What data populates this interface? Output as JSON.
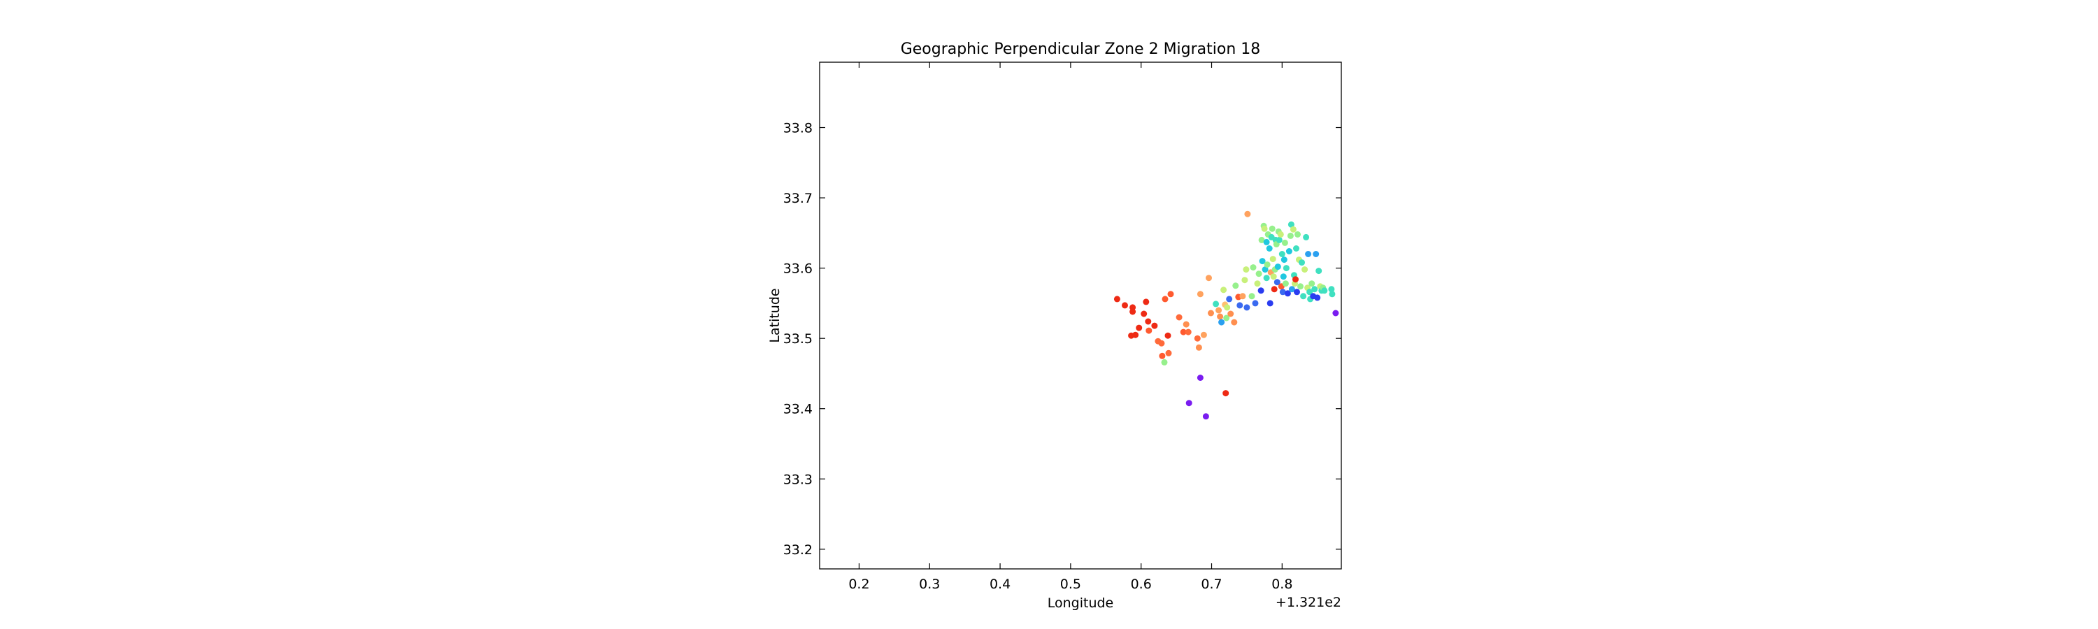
{
  "chart_data": {
    "type": "scatter",
    "title": "Geographic Perpendicular Zone 2 Migration 18",
    "xlabel": "Longitude",
    "ylabel": "Latitude",
    "x_offset_label": "+1.321e2",
    "xlim": [
      0.144,
      0.884
    ],
    "ylim": [
      33.172,
      33.893
    ],
    "xticks": [
      0.2,
      0.3,
      0.4,
      0.5,
      0.6,
      0.7,
      0.8
    ],
    "xtick_labels": [
      "0.2",
      "0.3",
      "0.4",
      "0.5",
      "0.6",
      "0.7",
      "0.8"
    ],
    "yticks": [
      33.2,
      33.3,
      33.4,
      33.5,
      33.6,
      33.7,
      33.8
    ],
    "ytick_labels": [
      "33.2",
      "33.3",
      "33.4",
      "33.5",
      "33.6",
      "33.7",
      "33.8"
    ],
    "grid": false,
    "legend": "none",
    "colormap": "rainbow",
    "points": [
      {
        "x": 0.566,
        "y": 33.556,
        "color": "#ee2a14"
      },
      {
        "x": 0.577,
        "y": 33.547,
        "color": "#ee2a14"
      },
      {
        "x": 0.588,
        "y": 33.544,
        "color": "#ee2a14"
      },
      {
        "x": 0.588,
        "y": 33.538,
        "color": "#ee2a14"
      },
      {
        "x": 0.592,
        "y": 33.505,
        "color": "#ee2a14"
      },
      {
        "x": 0.586,
        "y": 33.504,
        "color": "#ee2a14"
      },
      {
        "x": 0.597,
        "y": 33.515,
        "color": "#ee2a14"
      },
      {
        "x": 0.604,
        "y": 33.535,
        "color": "#ee2a14"
      },
      {
        "x": 0.607,
        "y": 33.552,
        "color": "#ee2a14"
      },
      {
        "x": 0.61,
        "y": 33.524,
        "color": "#ee2a14"
      },
      {
        "x": 0.611,
        "y": 33.511,
        "color": "#ff5a2f"
      },
      {
        "x": 0.619,
        "y": 33.518,
        "color": "#ee2a14"
      },
      {
        "x": 0.624,
        "y": 33.496,
        "color": "#ff6a3a"
      },
      {
        "x": 0.629,
        "y": 33.493,
        "color": "#ff6a3a"
      },
      {
        "x": 0.63,
        "y": 33.475,
        "color": "#ff5a2f"
      },
      {
        "x": 0.634,
        "y": 33.556,
        "color": "#ff5a2f"
      },
      {
        "x": 0.638,
        "y": 33.504,
        "color": "#ee2a14"
      },
      {
        "x": 0.639,
        "y": 33.479,
        "color": "#ff6a3a"
      },
      {
        "x": 0.642,
        "y": 33.563,
        "color": "#ff5a2f"
      },
      {
        "x": 0.633,
        "y": 33.466,
        "color": "#96f08c"
      },
      {
        "x": 0.654,
        "y": 33.53,
        "color": "#ff6a3a"
      },
      {
        "x": 0.664,
        "y": 33.52,
        "color": "#ff8f4f"
      },
      {
        "x": 0.66,
        "y": 33.509,
        "color": "#ff5a2f"
      },
      {
        "x": 0.667,
        "y": 33.509,
        "color": "#ff6a3a"
      },
      {
        "x": 0.68,
        "y": 33.5,
        "color": "#ff6a3a"
      },
      {
        "x": 0.682,
        "y": 33.487,
        "color": "#ff8f4f"
      },
      {
        "x": 0.689,
        "y": 33.505,
        "color": "#ffa25e"
      },
      {
        "x": 0.684,
        "y": 33.563,
        "color": "#ffa25e"
      },
      {
        "x": 0.696,
        "y": 33.586,
        "color": "#ffa25e"
      },
      {
        "x": 0.699,
        "y": 33.536,
        "color": "#ff8f4f"
      },
      {
        "x": 0.706,
        "y": 33.549,
        "color": "#3fe0c0"
      },
      {
        "x": 0.71,
        "y": 33.54,
        "color": "#ffa25e"
      },
      {
        "x": 0.712,
        "y": 33.531,
        "color": "#ff8f4f"
      },
      {
        "x": 0.714,
        "y": 33.523,
        "color": "#2aa0f0"
      },
      {
        "x": 0.717,
        "y": 33.569,
        "color": "#c8f07a"
      },
      {
        "x": 0.719,
        "y": 33.548,
        "color": "#ffc070"
      },
      {
        "x": 0.722,
        "y": 33.544,
        "color": "#c8f07a"
      },
      {
        "x": 0.721,
        "y": 33.529,
        "color": "#96f08c"
      },
      {
        "x": 0.725,
        "y": 33.556,
        "color": "#3a6af0"
      },
      {
        "x": 0.727,
        "y": 33.535,
        "color": "#ff8f4f"
      },
      {
        "x": 0.732,
        "y": 33.523,
        "color": "#ff8f4f"
      },
      {
        "x": 0.734,
        "y": 33.575,
        "color": "#96f08c"
      },
      {
        "x": 0.738,
        "y": 33.559,
        "color": "#ff5a2f"
      },
      {
        "x": 0.74,
        "y": 33.547,
        "color": "#3a6af0"
      },
      {
        "x": 0.744,
        "y": 33.56,
        "color": "#ffa25e"
      },
      {
        "x": 0.747,
        "y": 33.583,
        "color": "#c8f07a"
      },
      {
        "x": 0.749,
        "y": 33.598,
        "color": "#c8f07a"
      },
      {
        "x": 0.75,
        "y": 33.544,
        "color": "#3a6af0"
      },
      {
        "x": 0.751,
        "y": 33.677,
        "color": "#ffa25e"
      },
      {
        "x": 0.757,
        "y": 33.56,
        "color": "#96f08c"
      },
      {
        "x": 0.759,
        "y": 33.601,
        "color": "#96f08c"
      },
      {
        "x": 0.762,
        "y": 33.55,
        "color": "#3a6af0"
      },
      {
        "x": 0.765,
        "y": 33.578,
        "color": "#c8f07a"
      },
      {
        "x": 0.767,
        "y": 33.592,
        "color": "#96f08c"
      },
      {
        "x": 0.77,
        "y": 33.568,
        "color": "#2a3cf0"
      },
      {
        "x": 0.771,
        "y": 33.64,
        "color": "#96f08c"
      },
      {
        "x": 0.772,
        "y": 33.61,
        "color": "#20c8e0"
      },
      {
        "x": 0.774,
        "y": 33.66,
        "color": "#96f08c"
      },
      {
        "x": 0.775,
        "y": 33.656,
        "color": "#c8f07a"
      },
      {
        "x": 0.776,
        "y": 33.598,
        "color": "#20c8e0"
      },
      {
        "x": 0.778,
        "y": 33.637,
        "color": "#20c8e0"
      },
      {
        "x": 0.778,
        "y": 33.586,
        "color": "#3fe0c0"
      },
      {
        "x": 0.779,
        "y": 33.605,
        "color": "#96f08c"
      },
      {
        "x": 0.78,
        "y": 33.648,
        "color": "#96f08c"
      },
      {
        "x": 0.782,
        "y": 33.628,
        "color": "#20c8e0"
      },
      {
        "x": 0.783,
        "y": 33.55,
        "color": "#2a3cf0"
      },
      {
        "x": 0.784,
        "y": 33.594,
        "color": "#ffa25e"
      },
      {
        "x": 0.785,
        "y": 33.644,
        "color": "#3fe0c0"
      },
      {
        "x": 0.786,
        "y": 33.656,
        "color": "#96f08c"
      },
      {
        "x": 0.787,
        "y": 33.613,
        "color": "#c8f07a"
      },
      {
        "x": 0.788,
        "y": 33.588,
        "color": "#c8f07a"
      },
      {
        "x": 0.789,
        "y": 33.57,
        "color": "#ee2a14"
      },
      {
        "x": 0.79,
        "y": 33.598,
        "color": "#96f08c"
      },
      {
        "x": 0.791,
        "y": 33.64,
        "color": "#3fe0c0"
      },
      {
        "x": 0.792,
        "y": 33.634,
        "color": "#96f08c"
      },
      {
        "x": 0.793,
        "y": 33.58,
        "color": "#3a6af0"
      },
      {
        "x": 0.794,
        "y": 33.602,
        "color": "#20c8e0"
      },
      {
        "x": 0.795,
        "y": 33.652,
        "color": "#96f08c"
      },
      {
        "x": 0.796,
        "y": 33.64,
        "color": "#3fe0c0"
      },
      {
        "x": 0.798,
        "y": 33.648,
        "color": "#c8f07a"
      },
      {
        "x": 0.799,
        "y": 33.574,
        "color": "#ff5a2f"
      },
      {
        "x": 0.8,
        "y": 33.62,
        "color": "#3fe0c0"
      },
      {
        "x": 0.801,
        "y": 33.566,
        "color": "#3a6af0"
      },
      {
        "x": 0.802,
        "y": 33.588,
        "color": "#20c8e0"
      },
      {
        "x": 0.803,
        "y": 33.612,
        "color": "#20c8e0"
      },
      {
        "x": 0.804,
        "y": 33.636,
        "color": "#96f08c"
      },
      {
        "x": 0.805,
        "y": 33.578,
        "color": "#96f08c"
      },
      {
        "x": 0.806,
        "y": 33.6,
        "color": "#3fe0c0"
      },
      {
        "x": 0.808,
        "y": 33.564,
        "color": "#2a3cf0"
      },
      {
        "x": 0.81,
        "y": 33.624,
        "color": "#20c8e0"
      },
      {
        "x": 0.812,
        "y": 33.646,
        "color": "#96f08c"
      },
      {
        "x": 0.813,
        "y": 33.662,
        "color": "#3fe0c0"
      },
      {
        "x": 0.814,
        "y": 33.57,
        "color": "#2aa0f0"
      },
      {
        "x": 0.816,
        "y": 33.655,
        "color": "#c8f07a"
      },
      {
        "x": 0.817,
        "y": 33.59,
        "color": "#3fe0c0"
      },
      {
        "x": 0.818,
        "y": 33.578,
        "color": "#c8f07a"
      },
      {
        "x": 0.819,
        "y": 33.584,
        "color": "#ee2a14"
      },
      {
        "x": 0.82,
        "y": 33.628,
        "color": "#3fe0c0"
      },
      {
        "x": 0.821,
        "y": 33.566,
        "color": "#2a3cf0"
      },
      {
        "x": 0.822,
        "y": 33.648,
        "color": "#96f08c"
      },
      {
        "x": 0.824,
        "y": 33.612,
        "color": "#c8f07a"
      },
      {
        "x": 0.826,
        "y": 33.574,
        "color": "#96f08c"
      },
      {
        "x": 0.828,
        "y": 33.608,
        "color": "#3fe0c0"
      },
      {
        "x": 0.83,
        "y": 33.56,
        "color": "#3fe0c0"
      },
      {
        "x": 0.832,
        "y": 33.598,
        "color": "#c8f07a"
      },
      {
        "x": 0.834,
        "y": 33.644,
        "color": "#3fe0c0"
      },
      {
        "x": 0.836,
        "y": 33.572,
        "color": "#c8f07a"
      },
      {
        "x": 0.837,
        "y": 33.62,
        "color": "#2aa0f0"
      },
      {
        "x": 0.839,
        "y": 33.566,
        "color": "#3fe0c0"
      },
      {
        "x": 0.84,
        "y": 33.556,
        "color": "#3fe0c0"
      },
      {
        "x": 0.842,
        "y": 33.578,
        "color": "#96f08c"
      },
      {
        "x": 0.844,
        "y": 33.56,
        "color": "#2a3cf0"
      },
      {
        "x": 0.846,
        "y": 33.57,
        "color": "#3fe0c0"
      },
      {
        "x": 0.848,
        "y": 33.62,
        "color": "#2aa0f0"
      },
      {
        "x": 0.85,
        "y": 33.558,
        "color": "#2a3cf0"
      },
      {
        "x": 0.852,
        "y": 33.596,
        "color": "#3fe0c0"
      },
      {
        "x": 0.854,
        "y": 33.574,
        "color": "#c8f07a"
      },
      {
        "x": 0.856,
        "y": 33.568,
        "color": "#3fe0c0"
      },
      {
        "x": 0.858,
        "y": 33.572,
        "color": "#96f08c"
      },
      {
        "x": 0.86,
        "y": 33.568,
        "color": "#3fe0c0"
      },
      {
        "x": 0.87,
        "y": 33.57,
        "color": "#3fe0c0"
      },
      {
        "x": 0.871,
        "y": 33.563,
        "color": "#3fe0c0"
      },
      {
        "x": 0.876,
        "y": 33.536,
        "color": "#7a1cf0"
      },
      {
        "x": 0.684,
        "y": 33.444,
        "color": "#7a1cf0"
      },
      {
        "x": 0.668,
        "y": 33.408,
        "color": "#7a1cf0"
      },
      {
        "x": 0.692,
        "y": 33.389,
        "color": "#7a1cf0"
      },
      {
        "x": 0.72,
        "y": 33.422,
        "color": "#ee2a14"
      }
    ]
  }
}
